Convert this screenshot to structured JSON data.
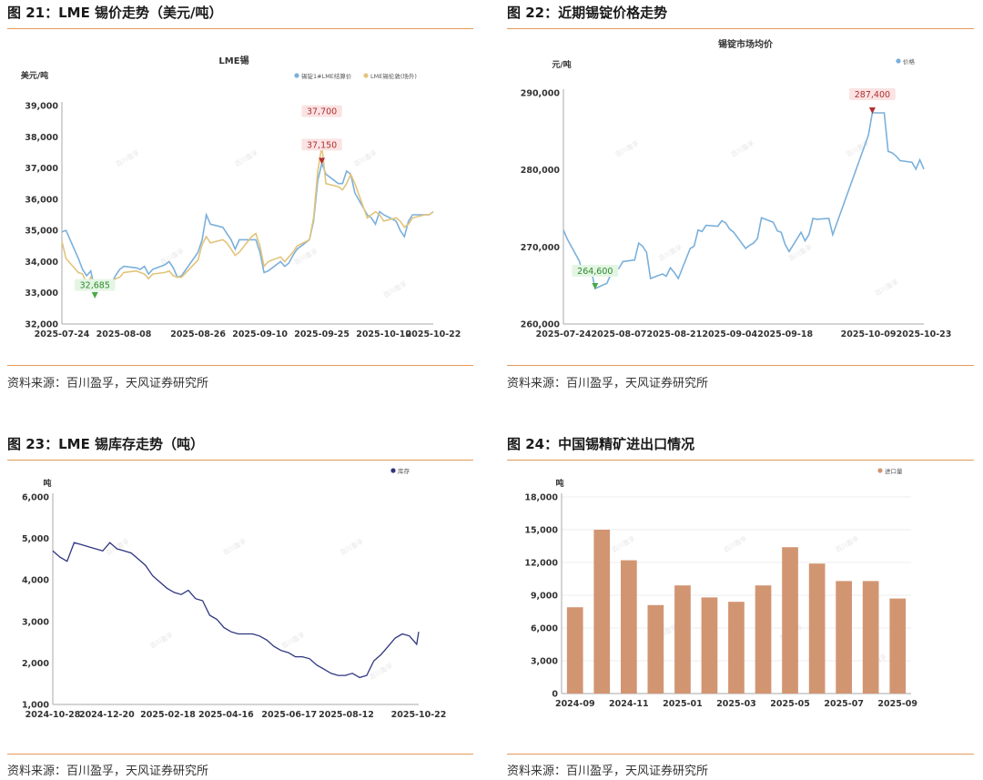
{
  "figures": [
    {
      "heading": "图 21：LME 锡价走势（美元/吨）",
      "source": "资料来源：百川盈孚，天风证券研究所",
      "chart_data": {
        "type": "line",
        "title": "LME锡",
        "ylabel": "美元/吨",
        "ylim": [
          32000,
          39000
        ],
        "yticks": [
          "32,000",
          "33,000",
          "34,000",
          "35,000",
          "36,000",
          "37,000",
          "38,000",
          "39,000"
        ],
        "xtick_labels": [
          "2025-07-24",
          "2025-08-08",
          "2025-08-26",
          "2025-09-10",
          "2025-09-25",
          "2025-10-10",
          "2025-10-22"
        ],
        "x": [
          "2025-07-24",
          "2025-07-25",
          "2025-07-28",
          "2025-07-29",
          "2025-07-30",
          "2025-07-31",
          "2025-08-01",
          "2025-08-04",
          "2025-08-05",
          "2025-08-06",
          "2025-08-07",
          "2025-08-08",
          "2025-08-11",
          "2025-08-12",
          "2025-08-13",
          "2025-08-14",
          "2025-08-15",
          "2025-08-18",
          "2025-08-19",
          "2025-08-20",
          "2025-08-21",
          "2025-08-22",
          "2025-08-26",
          "2025-08-27",
          "2025-08-28",
          "2025-08-29",
          "2025-09-01",
          "2025-09-02",
          "2025-09-03",
          "2025-09-04",
          "2025-09-05",
          "2025-09-08",
          "2025-09-09",
          "2025-09-10",
          "2025-09-11",
          "2025-09-12",
          "2025-09-15",
          "2025-09-16",
          "2025-09-17",
          "2025-09-18",
          "2025-09-19",
          "2025-09-22",
          "2025-09-23",
          "2025-09-24",
          "2025-09-25",
          "2025-09-26",
          "2025-09-29",
          "2025-09-30",
          "2025-10-01",
          "2025-10-02",
          "2025-10-03",
          "2025-10-06",
          "2025-10-07",
          "2025-10-08",
          "2025-10-09",
          "2025-10-10",
          "2025-10-13",
          "2025-10-14",
          "2025-10-15",
          "2025-10-16",
          "2025-10-17",
          "2025-10-20",
          "2025-10-21",
          "2025-10-22"
        ],
        "series": [
          {
            "name": "锡锭1#LME结算价",
            "color": "#7ab0dc",
            "values": [
              34950,
              35000,
              34100,
              33750,
              33550,
              33700,
              33100,
              33400,
              33300,
              33550,
              33750,
              33850,
              33800,
              33750,
              33850,
              33600,
              33750,
              33900,
              34000,
              33800,
              33500,
              33550,
              34300,
              34700,
              35500,
              35200,
              35100,
              34900,
              34700,
              34400,
              34700,
              34700,
              34700,
              34300,
              33650,
              33700,
              34000,
              33850,
              33950,
              34200,
              34400,
              34700,
              35300,
              36600,
              37150,
              36800,
              36500,
              36500,
              36900,
              36800,
              36200,
              35500,
              35400,
              35200,
              35600,
              35500,
              35300,
              35000,
              34800,
              35300,
              35500,
              35500,
              35500,
              35600
            ]
          },
          {
            "name": "LME锡伦敦(场外)",
            "color": "#e2c47c",
            "values": [
              34650,
              34100,
              33650,
              33600,
              33300,
              33500,
              33200,
              33350,
              33300,
              33450,
              33500,
              33650,
              33700,
              33650,
              33600,
              33450,
              33600,
              33650,
              33700,
              33550,
              33500,
              33500,
              34050,
              34550,
              34800,
              34600,
              34700,
              34600,
              34400,
              34200,
              34300,
              34800,
              34900,
              34500,
              33850,
              34000,
              34150,
              34000,
              34150,
              34300,
              34500,
              34700,
              35400,
              36900,
              37700,
              36500,
              36400,
              36300,
              36500,
              36800,
              36500,
              35400,
              35500,
              35600,
              35500,
              35300,
              35400,
              35300,
              35100,
              35200,
              35400,
              35500,
              35500,
              35600
            ]
          }
        ],
        "annotations": [
          {
            "label": "37,700",
            "x": "2025-09-25",
            "y": 37700
          },
          {
            "label": "37,150",
            "x": "2025-09-25",
            "y": 37150
          },
          {
            "label": "32,685",
            "x": "2025-08-01",
            "y": 32685
          }
        ]
      }
    },
    {
      "heading": "图 22：近期锡锭价格走势",
      "source": "资料来源：百川盈孚，天风证券研究所",
      "chart_data": {
        "type": "line",
        "title": "锡锭市场均价",
        "ylabel": "元/吨",
        "ylim": [
          260000,
          290000
        ],
        "yticks": [
          "260,000",
          "270,000",
          "280,000",
          "290,000"
        ],
        "xtick_labels": [
          "2025-07-24",
          "2025-08-07",
          "2025-08-21",
          "2025-09-04",
          "2025-09-18",
          "2025-10-09",
          "2025-10-23"
        ],
        "x": [
          "2025-07-24",
          "2025-07-25",
          "2025-07-28",
          "2025-07-29",
          "2025-07-30",
          "2025-07-31",
          "2025-08-01",
          "2025-08-04",
          "2025-08-05",
          "2025-08-06",
          "2025-08-07",
          "2025-08-08",
          "2025-08-11",
          "2025-08-12",
          "2025-08-13",
          "2025-08-14",
          "2025-08-15",
          "2025-08-18",
          "2025-08-19",
          "2025-08-20",
          "2025-08-21",
          "2025-08-22",
          "2025-08-25",
          "2025-08-26",
          "2025-08-27",
          "2025-08-28",
          "2025-08-29",
          "2025-09-01",
          "2025-09-02",
          "2025-09-03",
          "2025-09-04",
          "2025-09-05",
          "2025-09-08",
          "2025-09-09",
          "2025-09-10",
          "2025-09-11",
          "2025-09-12",
          "2025-09-15",
          "2025-09-16",
          "2025-09-17",
          "2025-09-18",
          "2025-09-19",
          "2025-09-22",
          "2025-09-23",
          "2025-09-24",
          "2025-09-25",
          "2025-09-26",
          "2025-09-29",
          "2025-09-30",
          "2025-10-09",
          "2025-10-10",
          "2025-10-13",
          "2025-10-14",
          "2025-10-15",
          "2025-10-16",
          "2025-10-17",
          "2025-10-20",
          "2025-10-21",
          "2025-10-22",
          "2025-10-23"
        ],
        "series": [
          {
            "name": "价格",
            "color": "#7ab0dc",
            "values": [
              272200,
              271000,
              268200,
              266300,
              266800,
              267100,
              264600,
              265300,
              266500,
              267300,
              267200,
              268100,
              268300,
              270500,
              270100,
              269300,
              265900,
              266500,
              266200,
              267300,
              266700,
              265900,
              269800,
              270100,
              272200,
              272000,
              272800,
              272700,
              273400,
              273100,
              272300,
              271900,
              269800,
              270200,
              270500,
              271100,
              273800,
              273200,
              272100,
              271900,
              270300,
              269400,
              271900,
              270800,
              271600,
              273700,
              273600,
              273700,
              271600,
              284500,
              287400,
              287400,
              282400,
              282200,
              281800,
              281200,
              281000,
              280100,
              281300,
              280100
            ]
          }
        ],
        "annotations": [
          {
            "label": "287,400",
            "x": "2025-10-10",
            "y": 287400
          },
          {
            "label": "264,600",
            "x": "2025-08-01",
            "y": 264600
          }
        ]
      }
    },
    {
      "heading": "图 23：LME 锡库存走势（吨）",
      "source": "资料来源：百川盈孚，天风证券研究所",
      "chart_data": {
        "type": "line",
        "ylabel": "吨",
        "ylim": [
          1000,
          6000
        ],
        "yticks": [
          "1,000",
          "2,000",
          "3,000",
          "4,000",
          "5,000",
          "6,000"
        ],
        "xtick_labels": [
          "2024-10-28",
          "2024-12-20",
          "2025-02-18",
          "2025-04-16",
          "2025-06-17",
          "2025-08-12",
          "2025-10-22"
        ],
        "x": [
          "2024-10-28",
          "2024-11-04",
          "2024-11-11",
          "2024-11-18",
          "2024-11-25",
          "2024-12-02",
          "2024-12-09",
          "2024-12-16",
          "2024-12-23",
          "2024-12-30",
          "2025-01-06",
          "2025-01-13",
          "2025-01-20",
          "2025-01-27",
          "2025-02-03",
          "2025-02-10",
          "2025-02-17",
          "2025-02-24",
          "2025-03-03",
          "2025-03-10",
          "2025-03-17",
          "2025-03-24",
          "2025-03-31",
          "2025-04-07",
          "2025-04-14",
          "2025-04-21",
          "2025-04-28",
          "2025-05-05",
          "2025-05-12",
          "2025-05-19",
          "2025-05-26",
          "2025-06-02",
          "2025-06-09",
          "2025-06-16",
          "2025-06-23",
          "2025-06-30",
          "2025-07-07",
          "2025-07-14",
          "2025-07-21",
          "2025-07-28",
          "2025-08-04",
          "2025-08-11",
          "2025-08-18",
          "2025-08-25",
          "2025-09-01",
          "2025-09-08",
          "2025-09-15",
          "2025-09-22",
          "2025-09-29",
          "2025-10-06",
          "2025-10-13",
          "2025-10-20",
          "2025-10-22"
        ],
        "series": [
          {
            "name": "库存",
            "color": "#2f3580",
            "values": [
              4700,
              4550,
              4450,
              4900,
              4850,
              4800,
              4750,
              4700,
              4900,
              4750,
              4700,
              4650,
              4500,
              4350,
              4100,
              3950,
              3800,
              3700,
              3650,
              3750,
              3550,
              3500,
              3150,
              3050,
              2850,
              2750,
              2700,
              2700,
              2700,
              2650,
              2550,
              2400,
              2300,
              2250,
              2150,
              2150,
              2100,
              1950,
              1850,
              1750,
              1700,
              1700,
              1750,
              1650,
              1700,
              2050,
              2200,
              2400,
              2600,
              2700,
              2650,
              2450,
              2750
            ]
          }
        ]
      }
    },
    {
      "heading": "图 24：中国锡精矿进出口情况",
      "source": "资料来源：百川盈孚，天风证券研究所",
      "chart_data": {
        "type": "bar",
        "ylabel": "吨",
        "ylim": [
          0,
          18000
        ],
        "yticks": [
          "0",
          "3,000",
          "6,000",
          "9,000",
          "12,000",
          "15,000",
          "18,000"
        ],
        "xtick_labels": [
          "2024-09",
          "2024-11",
          "2025-01",
          "2025-03",
          "2025-05",
          "2025-07",
          "2025-09"
        ],
        "categories": [
          "2024-09",
          "2024-10",
          "2024-11",
          "2024-12",
          "2025-01",
          "2025-02",
          "2025-03",
          "2025-04",
          "2025-05",
          "2025-06",
          "2025-07",
          "2025-08",
          "2025-09"
        ],
        "series": [
          {
            "name": "进口量",
            "color": "#d29572",
            "values": [
              7900,
              15000,
              12200,
              8100,
              9900,
              8800,
              8400,
              9900,
              13400,
              11900,
              10300,
              10300,
              8700
            ]
          }
        ]
      }
    }
  ],
  "watermark": "百川盈孚"
}
